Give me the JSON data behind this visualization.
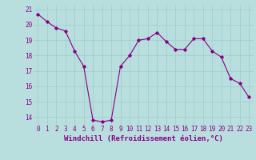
{
  "x": [
    0,
    1,
    2,
    3,
    4,
    5,
    6,
    7,
    8,
    9,
    10,
    11,
    12,
    13,
    14,
    15,
    16,
    17,
    18,
    19,
    20,
    21,
    22,
    23
  ],
  "y": [
    20.7,
    20.2,
    19.8,
    19.6,
    18.3,
    17.3,
    13.8,
    13.7,
    13.8,
    17.3,
    18.0,
    19.0,
    19.1,
    19.5,
    18.9,
    18.4,
    18.4,
    19.1,
    19.1,
    18.3,
    17.9,
    16.5,
    16.2,
    15.3
  ],
  "color": "#880088",
  "bg_color": "#b8dede",
  "grid_color": "#9ccccc",
  "xlabel": "Windchill (Refroidissement éolien,°C)",
  "ylim": [
    13.5,
    21.3
  ],
  "xlim": [
    -0.5,
    23.5
  ],
  "yticks": [
    14,
    15,
    16,
    17,
    18,
    19,
    20,
    21
  ],
  "xticks": [
    0,
    1,
    2,
    3,
    4,
    5,
    6,
    7,
    8,
    9,
    10,
    11,
    12,
    13,
    14,
    15,
    16,
    17,
    18,
    19,
    20,
    21,
    22,
    23
  ],
  "marker": "D",
  "markersize": 1.8,
  "linewidth": 0.8,
  "xlabel_fontsize": 6.5,
  "tick_fontsize": 5.5
}
